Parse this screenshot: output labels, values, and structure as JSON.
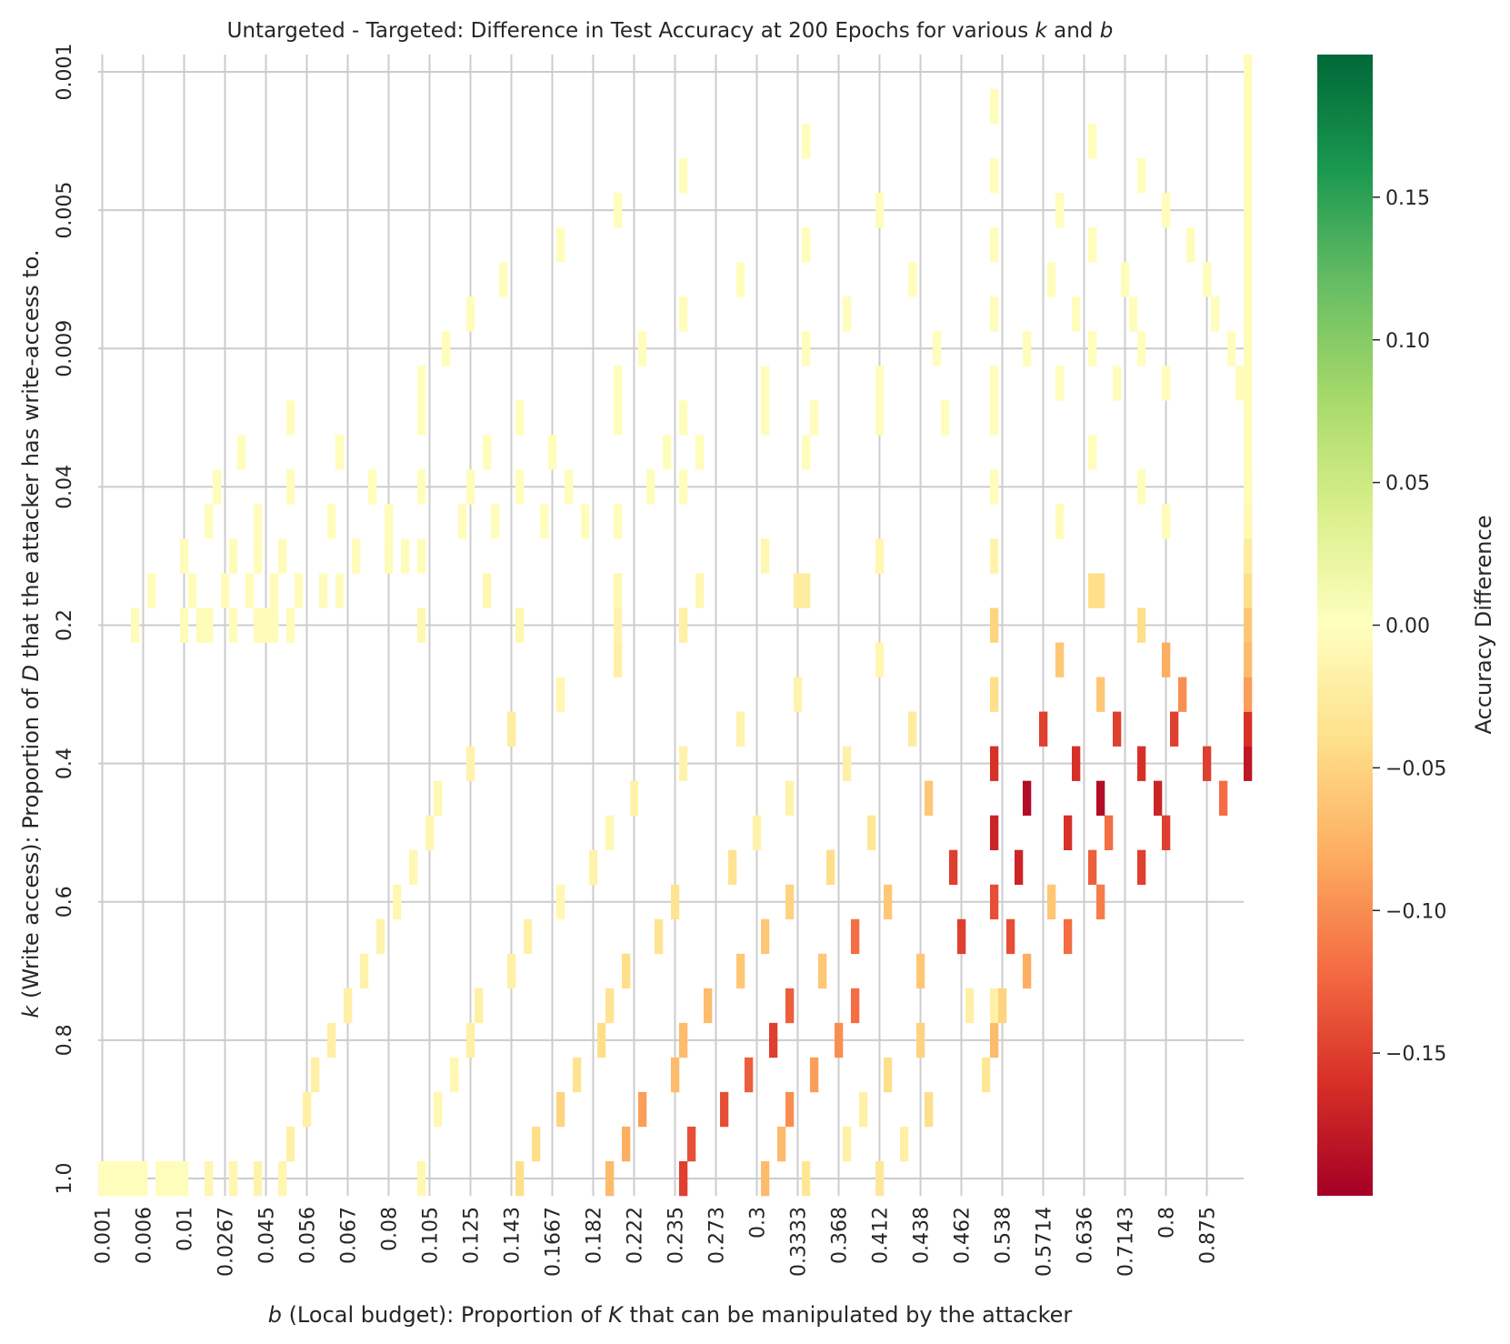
{
  "chart_data": {
    "type": "heatmap",
    "title_parts": [
      {
        "t": "Untargeted - Targeted: Difference in Test Accuracy at 200 Epochs for various ",
        "i": false
      },
      {
        "t": "k",
        "i": true
      },
      {
        "t": " and ",
        "i": false
      },
      {
        "t": "b",
        "i": true
      }
    ],
    "xlabel_parts": [
      {
        "t": "b",
        "i": true
      },
      {
        "t": " (Local budget): Proportion of ",
        "i": false
      },
      {
        "t": "K",
        "i": true
      },
      {
        "t": " that can be manipulated by the attacker",
        "i": false
      }
    ],
    "ylabel_parts": [
      {
        "t": "k",
        "i": true
      },
      {
        "t": " (Write access): Proportion of ",
        "i": false
      },
      {
        "t": "D",
        "i": true
      },
      {
        "t": " that the attacker has write-access to.",
        "i": false
      }
    ],
    "colorbar_label": "Accuracy Difference",
    "colorbar_range": [
      -0.2,
      0.2
    ],
    "colorbar_ticks": [
      0.15,
      0.1,
      0.05,
      0.0,
      -0.05,
      -0.1,
      -0.15
    ],
    "colorbar_tick_labels": [
      "0.15",
      "0.10",
      "0.05",
      "0.00",
      "−0.05",
      "−0.10",
      "−0.15"
    ],
    "colormap": [
      "#a50026",
      "#d73027",
      "#f46d43",
      "#fdae61",
      "#fee08b",
      "#ffffbf",
      "#d9ef8b",
      "#a6d96a",
      "#66bd63",
      "#1a9850",
      "#006837"
    ],
    "x_columns": 140,
    "y_rows": 33,
    "x_ticks": [
      {
        "col": 0,
        "label": "0.001"
      },
      {
        "col": 5,
        "label": "0.006"
      },
      {
        "col": 10,
        "label": "0.01"
      },
      {
        "col": 15,
        "label": "0.0267"
      },
      {
        "col": 20,
        "label": "0.045"
      },
      {
        "col": 25,
        "label": "0.056"
      },
      {
        "col": 30,
        "label": "0.067"
      },
      {
        "col": 35,
        "label": "0.08"
      },
      {
        "col": 40,
        "label": "0.105"
      },
      {
        "col": 45,
        "label": "0.125"
      },
      {
        "col": 50,
        "label": "0.143"
      },
      {
        "col": 55,
        "label": "0.1667"
      },
      {
        "col": 60,
        "label": "0.182"
      },
      {
        "col": 65,
        "label": "0.222"
      },
      {
        "col": 70,
        "label": "0.235"
      },
      {
        "col": 75,
        "label": "0.273"
      },
      {
        "col": 80,
        "label": "0.3"
      },
      {
        "col": 85,
        "label": "0.3333"
      },
      {
        "col": 90,
        "label": "0.368"
      },
      {
        "col": 95,
        "label": "0.412"
      },
      {
        "col": 100,
        "label": "0.438"
      },
      {
        "col": 105,
        "label": "0.462"
      },
      {
        "col": 110,
        "label": "0.538"
      },
      {
        "col": 115,
        "label": "0.5714"
      },
      {
        "col": 120,
        "label": "0.636"
      },
      {
        "col": 125,
        "label": "0.7143"
      },
      {
        "col": 130,
        "label": "0.8"
      },
      {
        "col": 135,
        "label": "0.875"
      }
    ],
    "y_ticks": [
      {
        "row": 0,
        "label": "0.001"
      },
      {
        "row": 4,
        "label": "0.005"
      },
      {
        "row": 8,
        "label": "0.009"
      },
      {
        "row": 12,
        "label": "0.04"
      },
      {
        "row": 16,
        "label": "0.2"
      },
      {
        "row": 20,
        "label": "0.4"
      },
      {
        "row": 24,
        "label": "0.6"
      },
      {
        "row": 28,
        "label": "0.8"
      },
      {
        "row": 32,
        "label": "1.0"
      }
    ],
    "cells": [
      [
        0,
        32,
        -0.002
      ],
      [
        1,
        32,
        -0.002
      ],
      [
        2,
        32,
        -0.002
      ],
      [
        3,
        32,
        -0.002
      ],
      [
        4,
        32,
        -0.002
      ],
      [
        5,
        32,
        -0.002
      ],
      [
        7,
        32,
        -0.003
      ],
      [
        8,
        32,
        -0.003
      ],
      [
        9,
        32,
        -0.003
      ],
      [
        10,
        32,
        -0.003
      ],
      [
        13,
        32,
        -0.012
      ],
      [
        16,
        32,
        -0.012
      ],
      [
        19,
        32,
        -0.015
      ],
      [
        22,
        32,
        -0.012
      ],
      [
        39,
        32,
        -0.01
      ],
      [
        51,
        32,
        -0.04
      ],
      [
        62,
        32,
        -0.07
      ],
      [
        71,
        32,
        -0.15
      ],
      [
        81,
        32,
        -0.07
      ],
      [
        86,
        32,
        -0.03
      ],
      [
        95,
        32,
        -0.03
      ],
      [
        23,
        31,
        -0.02
      ],
      [
        53,
        31,
        -0.04
      ],
      [
        64,
        31,
        -0.08
      ],
      [
        72,
        31,
        -0.14
      ],
      [
        83,
        31,
        -0.07
      ],
      [
        91,
        31,
        -0.02
      ],
      [
        98,
        31,
        -0.02
      ],
      [
        25,
        30,
        -0.02
      ],
      [
        41,
        30,
        -0.01
      ],
      [
        56,
        30,
        -0.05
      ],
      [
        66,
        30,
        -0.09
      ],
      [
        76,
        30,
        -0.14
      ],
      [
        84,
        30,
        -0.1
      ],
      [
        93,
        30,
        -0.02
      ],
      [
        101,
        30,
        -0.04
      ],
      [
        26,
        29,
        -0.02
      ],
      [
        43,
        29,
        -0.01
      ],
      [
        58,
        29,
        -0.035
      ],
      [
        70,
        29,
        -0.07
      ],
      [
        79,
        29,
        -0.13
      ],
      [
        87,
        29,
        -0.09
      ],
      [
        96,
        29,
        -0.04
      ],
      [
        108,
        29,
        -0.03
      ],
      [
        28,
        28,
        -0.02
      ],
      [
        45,
        28,
        -0.02
      ],
      [
        61,
        28,
        -0.04
      ],
      [
        71,
        28,
        -0.07
      ],
      [
        82,
        28,
        -0.15
      ],
      [
        90,
        28,
        -0.1
      ],
      [
        100,
        28,
        -0.05
      ],
      [
        109,
        28,
        -0.07
      ],
      [
        30,
        27,
        -0.02
      ],
      [
        46,
        27,
        -0.02
      ],
      [
        62,
        27,
        -0.035
      ],
      [
        74,
        27,
        -0.07
      ],
      [
        84,
        27,
        -0.13
      ],
      [
        92,
        27,
        -0.12
      ],
      [
        106,
        27,
        -0.02
      ],
      [
        109,
        27,
        -0.02
      ],
      [
        110,
        27,
        -0.05
      ],
      [
        32,
        26,
        -0.015
      ],
      [
        50,
        26,
        -0.02
      ],
      [
        64,
        26,
        -0.04
      ],
      [
        78,
        26,
        -0.06
      ],
      [
        88,
        26,
        -0.06
      ],
      [
        100,
        26,
        -0.06
      ],
      [
        113,
        26,
        -0.08
      ],
      [
        34,
        25,
        -0.015
      ],
      [
        52,
        25,
        -0.02
      ],
      [
        68,
        25,
        -0.035
      ],
      [
        81,
        25,
        -0.06
      ],
      [
        92,
        25,
        -0.12
      ],
      [
        105,
        25,
        -0.15
      ],
      [
        111,
        25,
        -0.14
      ],
      [
        118,
        25,
        -0.12
      ],
      [
        36,
        24,
        -0.01
      ],
      [
        56,
        24,
        -0.01
      ],
      [
        70,
        24,
        -0.035
      ],
      [
        84,
        24,
        -0.05
      ],
      [
        96,
        24,
        -0.06
      ],
      [
        109,
        24,
        -0.14
      ],
      [
        116,
        24,
        -0.06
      ],
      [
        122,
        24,
        -0.11
      ],
      [
        38,
        23,
        -0.01
      ],
      [
        60,
        23,
        -0.015
      ],
      [
        77,
        23,
        -0.035
      ],
      [
        89,
        23,
        -0.04
      ],
      [
        104,
        23,
        -0.15
      ],
      [
        112,
        23,
        -0.17
      ],
      [
        121,
        23,
        -0.13
      ],
      [
        127,
        23,
        -0.15
      ],
      [
        40,
        22,
        -0.01
      ],
      [
        62,
        22,
        -0.01
      ],
      [
        80,
        22,
        -0.015
      ],
      [
        94,
        22,
        -0.03
      ],
      [
        109,
        22,
        -0.17
      ],
      [
        118,
        22,
        -0.16
      ],
      [
        123,
        22,
        -0.12
      ],
      [
        130,
        22,
        -0.15
      ],
      [
        41,
        21,
        -0.01
      ],
      [
        65,
        21,
        -0.015
      ],
      [
        84,
        21,
        -0.015
      ],
      [
        101,
        21,
        -0.06
      ],
      [
        113,
        21,
        -0.19
      ],
      [
        122,
        21,
        -0.19
      ],
      [
        129,
        21,
        -0.17
      ],
      [
        137,
        21,
        -0.12
      ],
      [
        45,
        20,
        -0.015
      ],
      [
        71,
        20,
        -0.015
      ],
      [
        91,
        20,
        -0.02
      ],
      [
        109,
        20,
        -0.16
      ],
      [
        119,
        20,
        -0.16
      ],
      [
        127,
        20,
        -0.16
      ],
      [
        135,
        20,
        -0.15
      ],
      [
        140,
        20,
        -0.18
      ],
      [
        50,
        19,
        -0.025
      ],
      [
        78,
        19,
        -0.015
      ],
      [
        99,
        19,
        -0.025
      ],
      [
        115,
        19,
        -0.15
      ],
      [
        124,
        19,
        -0.15
      ],
      [
        131,
        19,
        -0.15
      ],
      [
        140,
        19,
        -0.16
      ],
      [
        56,
        18,
        -0.01
      ],
      [
        85,
        18,
        -0.015
      ],
      [
        109,
        18,
        -0.04
      ],
      [
        122,
        18,
        -0.06
      ],
      [
        132,
        18,
        -0.1
      ],
      [
        140,
        18,
        -0.09
      ],
      [
        63,
        17,
        -0.02
      ],
      [
        95,
        17,
        -0.01
      ],
      [
        117,
        17,
        -0.06
      ],
      [
        130,
        17,
        -0.08
      ],
      [
        140,
        17,
        -0.07
      ],
      [
        4,
        16,
        -0.005
      ],
      [
        10,
        16,
        -0.005
      ],
      [
        12,
        16,
        -0.005
      ],
      [
        13,
        16,
        -0.005
      ],
      [
        16,
        16,
        -0.005
      ],
      [
        19,
        16,
        -0.005
      ],
      [
        20,
        16,
        -0.005
      ],
      [
        21,
        16,
        -0.005
      ],
      [
        23,
        16,
        -0.005
      ],
      [
        39,
        16,
        -0.01
      ],
      [
        51,
        16,
        -0.01
      ],
      [
        63,
        16,
        -0.015
      ],
      [
        71,
        16,
        -0.02
      ],
      [
        109,
        16,
        -0.05
      ],
      [
        127,
        16,
        -0.04
      ],
      [
        140,
        16,
        -0.06
      ],
      [
        6,
        15,
        -0.004
      ],
      [
        11,
        15,
        -0.004
      ],
      [
        15,
        15,
        -0.004
      ],
      [
        18,
        15,
        -0.004
      ],
      [
        21,
        15,
        -0.004
      ],
      [
        24,
        15,
        -0.004
      ],
      [
        27,
        15,
        -0.004
      ],
      [
        29,
        15,
        -0.004
      ],
      [
        47,
        15,
        -0.01
      ],
      [
        63,
        15,
        -0.01
      ],
      [
        73,
        15,
        -0.01
      ],
      [
        85,
        15,
        -0.025
      ],
      [
        86,
        15,
        -0.025
      ],
      [
        121,
        15,
        -0.04
      ],
      [
        122,
        15,
        -0.04
      ],
      [
        140,
        15,
        -0.04
      ],
      [
        10,
        14,
        -0.004
      ],
      [
        16,
        14,
        -0.004
      ],
      [
        19,
        14,
        -0.004
      ],
      [
        22,
        14,
        -0.004
      ],
      [
        31,
        14,
        -0.004
      ],
      [
        35,
        14,
        -0.004
      ],
      [
        37,
        14,
        -0.004
      ],
      [
        39,
        14,
        -0.004
      ],
      [
        81,
        14,
        -0.01
      ],
      [
        95,
        14,
        -0.01
      ],
      [
        109,
        14,
        -0.015
      ],
      [
        140,
        14,
        -0.025
      ],
      [
        13,
        13,
        -0.003
      ],
      [
        19,
        13,
        -0.003
      ],
      [
        28,
        13,
        -0.003
      ],
      [
        35,
        13,
        -0.003
      ],
      [
        44,
        13,
        -0.003
      ],
      [
        48,
        13,
        -0.003
      ],
      [
        54,
        13,
        -0.003
      ],
      [
        59,
        13,
        -0.003
      ],
      [
        63,
        13,
        -0.004
      ],
      [
        117,
        13,
        -0.004
      ],
      [
        130,
        13,
        -0.004
      ],
      [
        140,
        13,
        -0.008
      ],
      [
        14,
        12,
        -0.003
      ],
      [
        23,
        12,
        -0.003
      ],
      [
        33,
        12,
        -0.003
      ],
      [
        39,
        12,
        -0.003
      ],
      [
        45,
        12,
        -0.003
      ],
      [
        51,
        12,
        -0.003
      ],
      [
        57,
        12,
        -0.003
      ],
      [
        67,
        12,
        -0.003
      ],
      [
        71,
        12,
        -0.003
      ],
      [
        109,
        12,
        -0.003
      ],
      [
        127,
        12,
        -0.003
      ],
      [
        140,
        12,
        -0.005
      ],
      [
        17,
        11,
        -0.003
      ],
      [
        29,
        11,
        -0.003
      ],
      [
        47,
        11,
        -0.003
      ],
      [
        55,
        11,
        -0.003
      ],
      [
        69,
        11,
        -0.003
      ],
      [
        73,
        11,
        -0.003
      ],
      [
        86,
        11,
        -0.003
      ],
      [
        121,
        11,
        -0.003
      ],
      [
        23,
        10,
        -0.003
      ],
      [
        39,
        10,
        -0.003
      ],
      [
        51,
        10,
        -0.003
      ],
      [
        63,
        10,
        -0.003
      ],
      [
        71,
        10,
        -0.003
      ],
      [
        81,
        10,
        -0.003
      ],
      [
        87,
        10,
        -0.003
      ],
      [
        95,
        10,
        -0.003
      ],
      [
        103,
        10,
        -0.003
      ],
      [
        109,
        10,
        -0.003
      ],
      [
        39,
        9,
        -0.003
      ],
      [
        63,
        9,
        -0.003
      ],
      [
        81,
        9,
        -0.003
      ],
      [
        95,
        9,
        -0.003
      ],
      [
        109,
        9,
        -0.003
      ],
      [
        117,
        9,
        -0.003
      ],
      [
        124,
        9,
        -0.003
      ],
      [
        130,
        9,
        -0.003
      ],
      [
        139,
        9,
        -0.004
      ],
      [
        42,
        8,
        -0.003
      ],
      [
        66,
        8,
        -0.003
      ],
      [
        86,
        8,
        -0.003
      ],
      [
        102,
        8,
        -0.003
      ],
      [
        113,
        8,
        -0.003
      ],
      [
        121,
        8,
        -0.003
      ],
      [
        127,
        8,
        -0.003
      ],
      [
        138,
        8,
        -0.003
      ],
      [
        45,
        7,
        -0.003
      ],
      [
        71,
        7,
        -0.003
      ],
      [
        91,
        7,
        -0.003
      ],
      [
        109,
        7,
        -0.003
      ],
      [
        119,
        7,
        -0.003
      ],
      [
        126,
        7,
        -0.003
      ],
      [
        136,
        7,
        -0.003
      ],
      [
        49,
        6,
        -0.003
      ],
      [
        78,
        6,
        -0.003
      ],
      [
        99,
        6,
        -0.003
      ],
      [
        116,
        6,
        -0.003
      ],
      [
        125,
        6,
        -0.003
      ],
      [
        135,
        6,
        -0.003
      ],
      [
        56,
        5,
        -0.003
      ],
      [
        86,
        5,
        -0.003
      ],
      [
        109,
        5,
        -0.003
      ],
      [
        121,
        5,
        -0.003
      ],
      [
        133,
        5,
        -0.003
      ],
      [
        63,
        4,
        -0.003
      ],
      [
        95,
        4,
        -0.003
      ],
      [
        117,
        4,
        -0.003
      ],
      [
        130,
        4,
        -0.003
      ],
      [
        71,
        3,
        -0.003
      ],
      [
        109,
        3,
        -0.003
      ],
      [
        127,
        3,
        -0.003
      ],
      [
        86,
        2,
        -0.003
      ],
      [
        121,
        2,
        -0.003
      ],
      [
        109,
        1,
        -0.003
      ]
    ],
    "column_extra": {
      "col": 140,
      "from_row": 0,
      "to_row": 16,
      "value": -0.004
    }
  }
}
